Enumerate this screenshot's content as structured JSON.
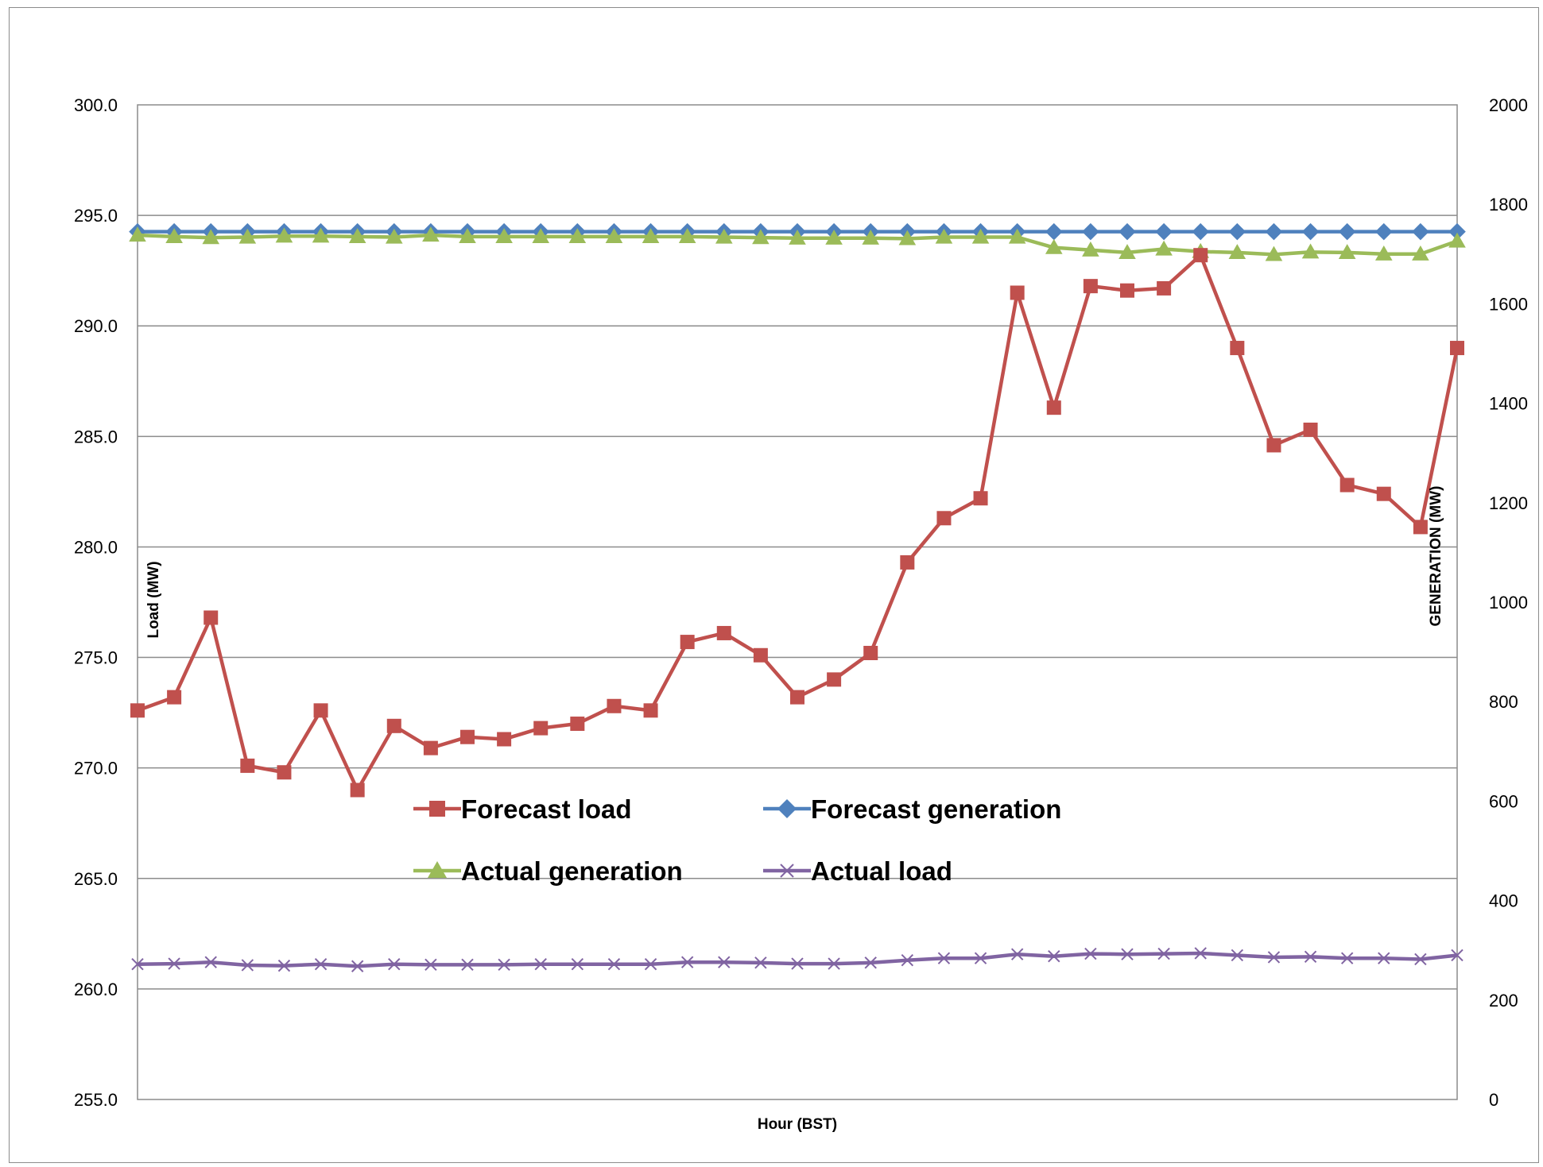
{
  "chart_data": {
    "type": "line",
    "xlabel": "Hour (BST)",
    "ylabel_left": "Load (MW)",
    "ylabel_right": "GENERATION (MW)",
    "ylim_left": [
      255.0,
      300.0
    ],
    "ylim_right": [
      0,
      2000
    ],
    "yticks_left": [
      "255.0",
      "260.0",
      "265.0",
      "270.0",
      "275.0",
      "280.0",
      "285.0",
      "290.0",
      "295.0",
      "300.0"
    ],
    "yticks_right": [
      "0",
      "200",
      "400",
      "600",
      "800",
      "1000",
      "1200",
      "1400",
      "1600",
      "1800",
      "2000"
    ],
    "grid": "horizontal",
    "legend_position": "center",
    "x_count": 37,
    "series": [
      {
        "name": "Forecast load",
        "axis": "left",
        "color": "#c0504d",
        "marker": "square",
        "values": [
          272.6,
          273.2,
          276.8,
          270.1,
          269.8,
          272.6,
          269.0,
          271.9,
          270.9,
          271.4,
          271.3,
          271.8,
          272.0,
          272.8,
          272.6,
          275.7,
          276.1,
          275.1,
          273.2,
          274.0,
          275.2,
          279.3,
          281.3,
          282.2,
          291.5,
          286.3,
          291.8,
          291.6,
          291.7,
          293.2,
          289.0,
          284.6,
          285.3,
          282.8,
          282.4,
          280.9,
          289.0
        ]
      },
      {
        "name": "Forecast generation",
        "axis": "right",
        "color": "#4f81bd",
        "marker": "diamond",
        "values": [
          1745,
          1745,
          1745,
          1745,
          1745,
          1745,
          1745,
          1745,
          1745,
          1745,
          1745,
          1745,
          1745,
          1745,
          1745,
          1745,
          1745,
          1745,
          1745,
          1745,
          1745,
          1745,
          1745,
          1745,
          1745,
          1745,
          1745,
          1745,
          1745,
          1745,
          1745,
          1745,
          1745,
          1745,
          1745,
          1745,
          1745
        ]
      },
      {
        "name": "Actual generation",
        "axis": "right",
        "color": "#9bbb59",
        "marker": "triangle",
        "values": [
          1738,
          1735,
          1733,
          1734,
          1736,
          1736,
          1735,
          1734,
          1738,
          1735,
          1735,
          1735,
          1735,
          1735,
          1735,
          1735,
          1734,
          1733,
          1732,
          1732,
          1732,
          1731,
          1734,
          1734,
          1734,
          1713,
          1708,
          1703,
          1710,
          1705,
          1703,
          1699,
          1704,
          1703,
          1700,
          1700,
          1726
        ]
      },
      {
        "name": "Actual load",
        "axis": "right",
        "color": "#8064a2",
        "marker": "x",
        "values": [
          272,
          273,
          276,
          270,
          269,
          272,
          268,
          272,
          271,
          271,
          271,
          272,
          272,
          272,
          272,
          276,
          276,
          275,
          273,
          273,
          275,
          280,
          284,
          284,
          292,
          288,
          293,
          292,
          293,
          294,
          290,
          286,
          287,
          284,
          284,
          282,
          290
        ]
      }
    ]
  }
}
